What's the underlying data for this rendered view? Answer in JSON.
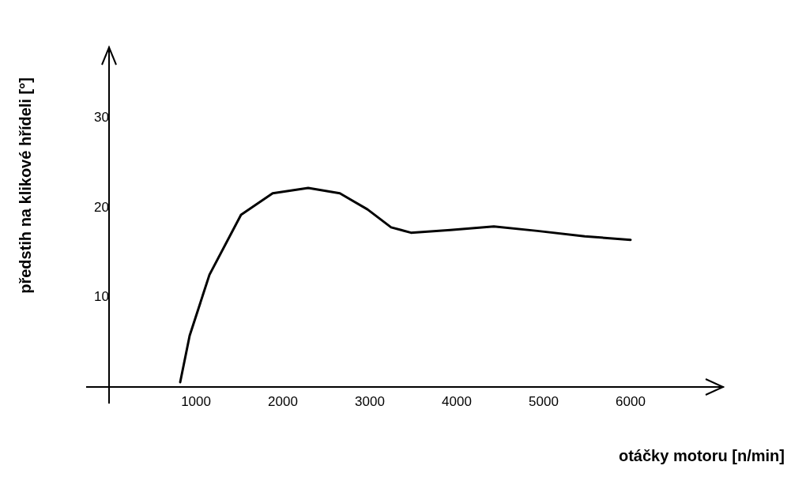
{
  "chart_data": {
    "type": "line",
    "xlabel": "otáčky motoru [n/min]",
    "ylabel": "předstih na klikové hřídeli [°]",
    "series": [
      {
        "color": "#000000",
        "x": [
          818,
          927,
          1155,
          1518,
          1882,
          2291,
          2655,
          2973,
          3245,
          3473,
          3927,
          4427,
          4927,
          5473,
          6000
        ],
        "values": [
          0.5,
          5.7,
          12.5,
          19.2,
          21.6,
          22.2,
          21.6,
          19.8,
          17.8,
          17.2,
          17.5,
          17.9,
          17.4,
          16.8,
          16.4
        ]
      }
    ],
    "xlim": [
      -255,
      7064
    ],
    "xticks": [
      1000,
      2000,
      3000,
      4000,
      5000,
      6000
    ],
    "ylim": [
      -1.8,
      37.9
    ],
    "yticks": [
      10,
      20,
      30
    ],
    "grid": false,
    "legend": false,
    "marker": "none",
    "line_style": "solid"
  }
}
